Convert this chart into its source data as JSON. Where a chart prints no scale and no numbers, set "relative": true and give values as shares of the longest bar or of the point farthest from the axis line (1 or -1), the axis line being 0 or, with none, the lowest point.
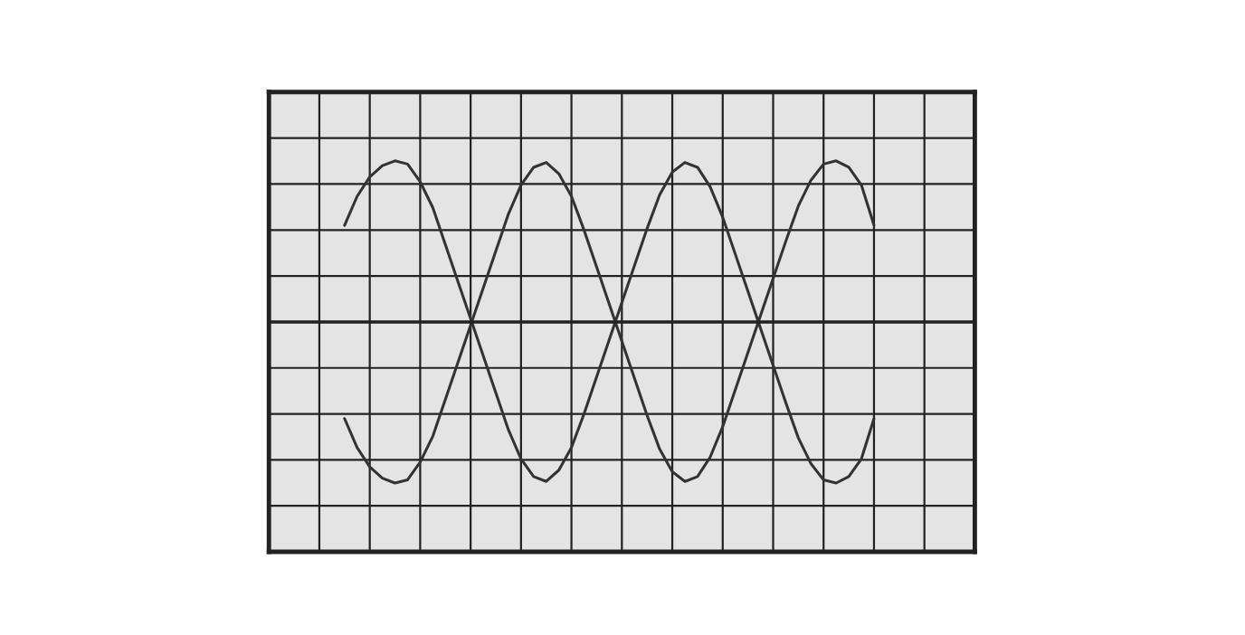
{
  "chart_data": {
    "type": "line",
    "relative": true,
    "grid": true,
    "tick_labels": false,
    "line_style": "solid",
    "categories": [
      null,
      null,
      null,
      null,
      null,
      null,
      null,
      null,
      null,
      null,
      null,
      null,
      null,
      null,
      null,
      null,
      null,
      null,
      null,
      null,
      null,
      null,
      null,
      null,
      null,
      null,
      null,
      null,
      null,
      null,
      null,
      null,
      null,
      null,
      null,
      null,
      null,
      null,
      null,
      null,
      null,
      null,
      null,
      null,
      null,
      null,
      null,
      null,
      null,
      null,
      null,
      null,
      null,
      null,
      null,
      null,
      null
    ],
    "series": [
      {
        "color": "#333333",
        "values": [
          null,
          null,
          null,
          null,
          null,
          null,
          0.6,
          0.78,
          0.9,
          0.97,
          1.0,
          0.98,
          0.87,
          0.71,
          0.48,
          0.25,
          0.02,
          -0.21,
          -0.44,
          -0.67,
          -0.85,
          -0.96,
          -0.99,
          -0.92,
          -0.78,
          -0.57,
          -0.34,
          -0.11,
          0.12,
          0.35,
          0.58,
          0.79,
          0.93,
          0.99,
          0.96,
          0.84,
          0.65,
          0.42,
          0.19,
          -0.04,
          -0.27,
          -0.5,
          -0.72,
          -0.88,
          -0.98,
          -1.0,
          -0.96,
          -0.85,
          -0.6,
          null,
          null,
          null,
          null,
          null,
          null,
          null,
          null
        ]
      },
      {
        "color": "#333333",
        "values": [
          null,
          null,
          null,
          null,
          null,
          null,
          -0.6,
          -0.78,
          -0.9,
          -0.97,
          -1.0,
          -0.98,
          -0.87,
          -0.71,
          -0.48,
          -0.25,
          -0.02,
          0.21,
          0.44,
          0.67,
          0.85,
          0.96,
          0.99,
          0.92,
          0.78,
          0.57,
          0.34,
          0.11,
          -0.12,
          -0.35,
          -0.58,
          -0.79,
          -0.93,
          -0.99,
          -0.96,
          -0.84,
          -0.65,
          -0.42,
          -0.19,
          0.04,
          0.27,
          0.5,
          0.72,
          0.88,
          0.98,
          1.0,
          0.96,
          0.85,
          0.6,
          null,
          null,
          null,
          null,
          null,
          null,
          null,
          null
        ]
      }
    ]
  }
}
